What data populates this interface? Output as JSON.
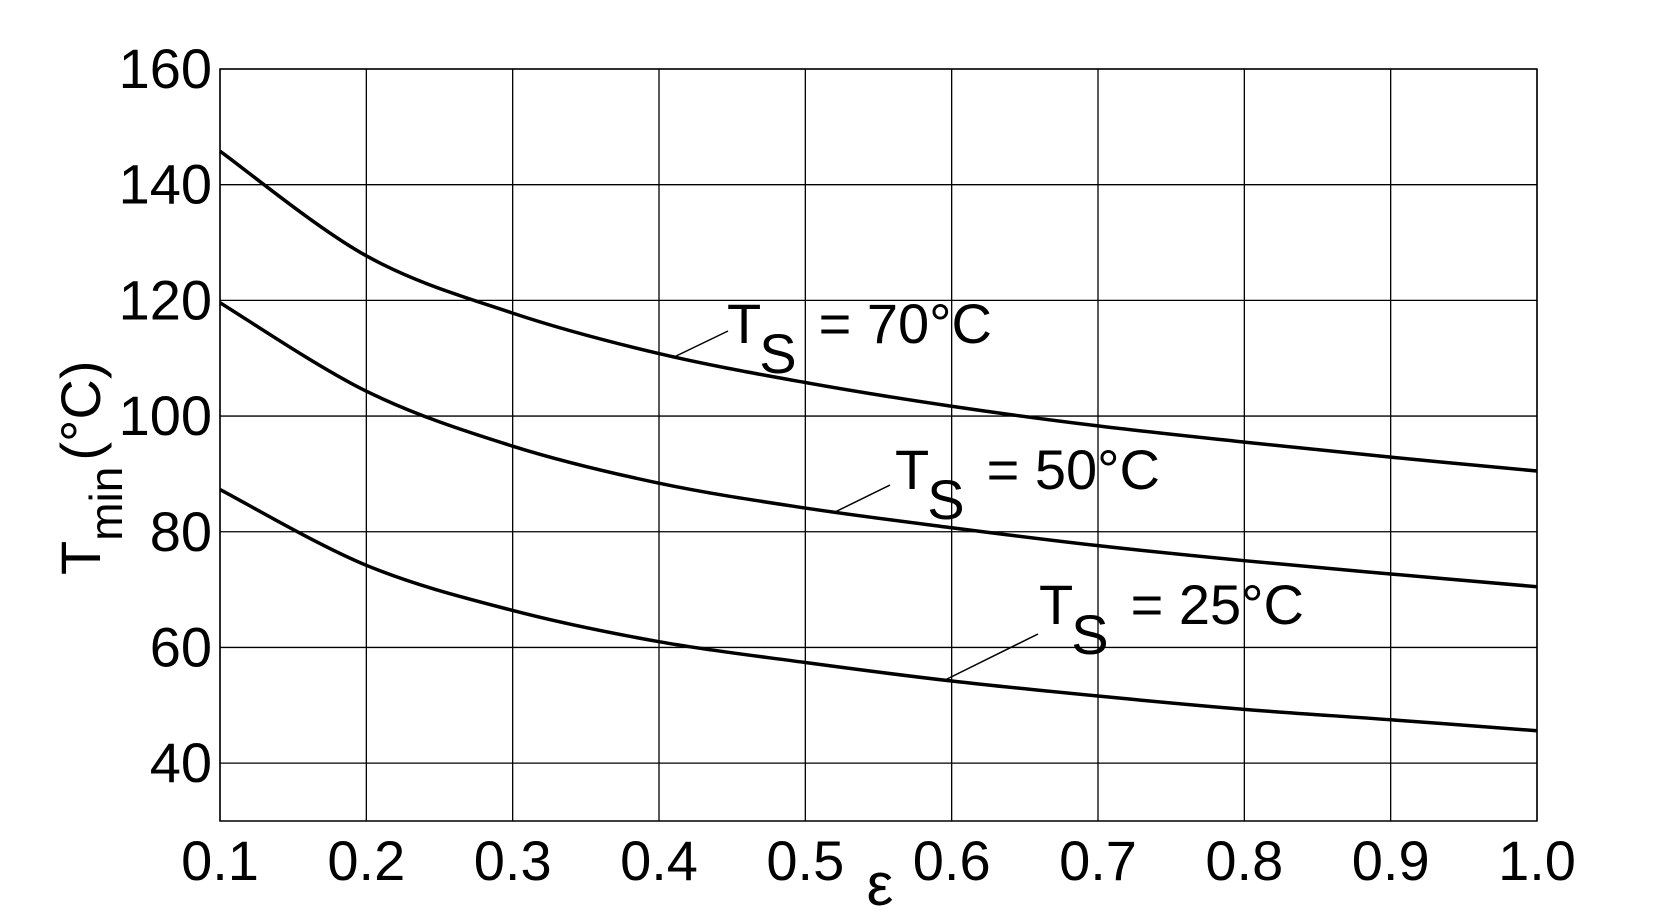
{
  "chart_data": {
    "type": "line",
    "x_label": "ε",
    "y_label": {
      "main": "T",
      "sub": "min",
      "unit": "(°C)"
    },
    "x": [
      0.1,
      0.2,
      0.3,
      0.4,
      0.5,
      0.6,
      0.7,
      0.8,
      0.9,
      1.0
    ],
    "series": [
      {
        "color": "#000000",
        "values": [
          145.8,
          127.7,
          117.8,
          110.8,
          105.8,
          101.7,
          98.3,
          95.5,
          92.9,
          90.5
        ]
      },
      {
        "color": "#000000",
        "values": [
          119.6,
          104.3,
          94.8,
          88.4,
          84.1,
          80.7,
          77.6,
          75.0,
          72.7,
          70.5
        ]
      },
      {
        "color": "#000000",
        "values": [
          87.3,
          74.2,
          66.4,
          61.0,
          57.4,
          54.2,
          51.6,
          49.3,
          47.5,
          45.6
        ]
      }
    ],
    "annotations": [
      {
        "main": "T",
        "sub": "S",
        "rest": "= 70°C"
      },
      {
        "main": "T",
        "sub": "S",
        "rest": "= 50°C"
      },
      {
        "main": "T",
        "sub": "S",
        "rest": "= 25°C"
      }
    ],
    "xlim": [
      0.1,
      1.0
    ],
    "ylim": [
      30,
      160
    ],
    "xticks": [
      0.1,
      0.2,
      0.3,
      0.4,
      0.5,
      0.6,
      0.7,
      0.8,
      0.9,
      {
        "value": 1.0,
        "label": "1.0"
      }
    ],
    "yticks": [
      40,
      60,
      80,
      100,
      120,
      140,
      160
    ],
    "grid": true
  }
}
